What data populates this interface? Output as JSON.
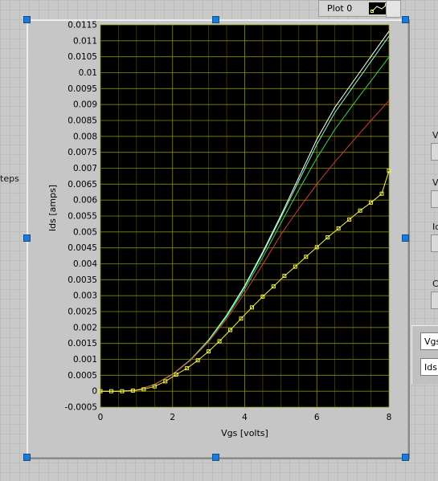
{
  "window": {
    "left_label": "teps",
    "plot_legend_label": "Plot 0"
  },
  "right_panel": {
    "labels": [
      "V",
      "V",
      "Io",
      "C"
    ],
    "cursor_fields": [
      "Vgs",
      "Ids"
    ]
  },
  "colors": {
    "plot_background": "#000000",
    "grid": "#8a8a00",
    "series_white": "#ffffff",
    "series_cyan": "#7fffd4",
    "series_green": "#3fd24f",
    "series_red": "#d23a3a",
    "series_yellow": "#f4f44a"
  },
  "chart_data": {
    "type": "line",
    "xlabel": "Vgs [volts]",
    "ylabel": "Ids [amps]",
    "xlim": [
      0,
      8
    ],
    "ylim": [
      -0.0005,
      0.0115
    ],
    "x_ticks": [
      "0",
      "2",
      "4",
      "6",
      "8"
    ],
    "y_ticks": [
      "-0.0005",
      "0",
      "0.0005",
      "0.001",
      "0.0015",
      "0.002",
      "0.0025",
      "0.003",
      "0.0035",
      "0.004",
      "0.0045",
      "0.005",
      "0.0055",
      "0.006",
      "0.0065",
      "0.007",
      "0.0075",
      "0.008",
      "0.0085",
      "0.009",
      "0.0095",
      "0.01",
      "0.0105",
      "0.011",
      "0.0115"
    ],
    "x_tick_values": [
      0,
      2,
      4,
      6,
      8
    ],
    "y_tick_values": [
      -0.0005,
      0,
      0.0005,
      0.001,
      0.0015,
      0.002,
      0.0025,
      0.003,
      0.0035,
      0.004,
      0.0045,
      0.005,
      0.0055,
      0.006,
      0.0065,
      0.007,
      0.0075,
      0.008,
      0.0085,
      0.009,
      0.0095,
      0.01,
      0.0105,
      0.011,
      0.0115
    ],
    "grid": true,
    "series": [
      {
        "name": "white",
        "color": "#ffffff",
        "markers": false,
        "x": [
          0,
          0.5,
          1,
          1.5,
          2,
          2.5,
          3,
          3.5,
          4,
          4.5,
          5,
          5.5,
          6,
          6.5,
          7,
          7.5,
          8
        ],
        "y": [
          0,
          0,
          3e-05,
          0.00021,
          0.00053,
          0.00099,
          0.00161,
          0.00239,
          0.00331,
          0.00437,
          0.00551,
          0.00671,
          0.00791,
          0.00891,
          0.00971,
          0.01051,
          0.0113
        ]
      },
      {
        "name": "cyan",
        "color": "#7fffd4",
        "markers": false,
        "x": [
          0,
          0.5,
          1,
          1.5,
          2,
          2.5,
          3,
          3.5,
          4,
          4.5,
          5,
          5.5,
          6,
          6.5,
          7,
          7.5,
          8
        ],
        "y": [
          0,
          0,
          3e-05,
          0.00021,
          0.00053,
          0.00099,
          0.0016,
          0.00237,
          0.00328,
          0.00432,
          0.00545,
          0.0066,
          0.00775,
          0.00875,
          0.00955,
          0.01035,
          0.01115
        ]
      },
      {
        "name": "green",
        "color": "#3fd24f",
        "markers": false,
        "x": [
          0,
          0.5,
          1,
          1.5,
          2,
          2.5,
          3,
          3.5,
          4,
          4.5,
          5,
          5.5,
          6,
          6.5,
          7,
          7.5,
          8
        ],
        "y": [
          0,
          0,
          3e-05,
          0.00021,
          0.00052,
          0.00098,
          0.00158,
          0.00233,
          0.0032,
          0.0042,
          0.00527,
          0.00632,
          0.00732,
          0.00822,
          0.00899,
          0.00974,
          0.01049
        ]
      },
      {
        "name": "red",
        "color": "#d23a3a",
        "markers": false,
        "x": [
          0,
          0.5,
          1,
          1.5,
          2,
          2.5,
          3,
          3.5,
          4,
          4.5,
          5,
          5.5,
          6,
          6.5,
          7,
          7.5,
          8
        ],
        "y": [
          0,
          0,
          3e-05,
          0.00021,
          0.00052,
          0.00097,
          0.00155,
          0.00227,
          0.00308,
          0.00398,
          0.00491,
          0.00573,
          0.0065,
          0.0072,
          0.00785,
          0.0085,
          0.00912
        ]
      },
      {
        "name": "yellow",
        "color": "#f4f44a",
        "markers": true,
        "x": [
          0,
          0.3,
          0.6,
          0.9,
          1.2,
          1.5,
          1.8,
          2.1,
          2.4,
          2.7,
          3.0,
          3.3,
          3.6,
          3.9,
          4.2,
          4.5,
          4.8,
          5.1,
          5.4,
          5.7,
          6.0,
          6.3,
          6.6,
          6.9,
          7.2,
          7.5,
          7.8,
          8.0
        ],
        "y": [
          0,
          0,
          0,
          2e-05,
          6e-05,
          0.00015,
          0.00031,
          0.00052,
          0.00072,
          0.00097,
          0.00125,
          0.00157,
          0.00192,
          0.00228,
          0.00263,
          0.00297,
          0.00329,
          0.00362,
          0.00391,
          0.00422,
          0.00452,
          0.00483,
          0.00511,
          0.00539,
          0.00567,
          0.00592,
          0.0062,
          0.00692
        ]
      }
    ]
  }
}
